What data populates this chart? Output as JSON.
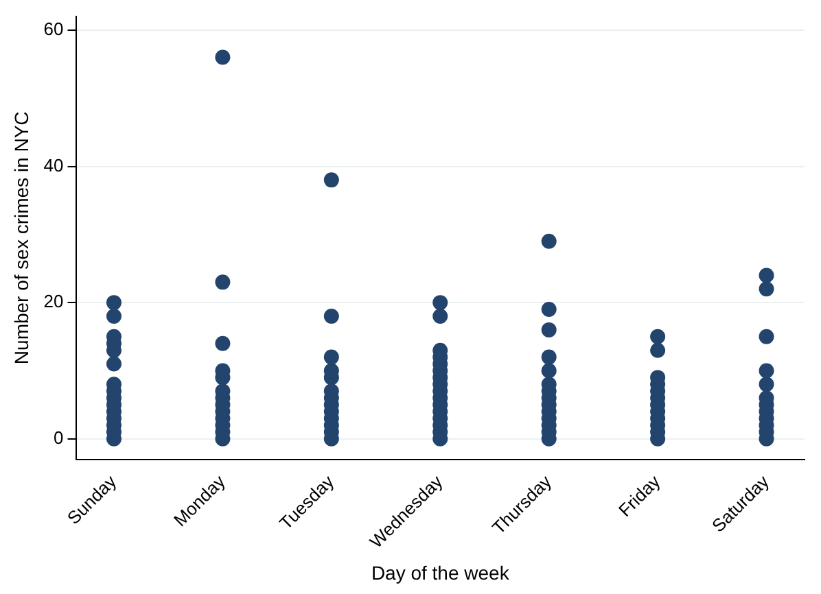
{
  "chart_data": {
    "type": "scatter",
    "xlabel": "Day of the week",
    "ylabel": "Number of sex crimes in NYC",
    "categories": [
      "Sunday",
      "Monday",
      "Tuesday",
      "Wednesday",
      "Thursday",
      "Friday",
      "Saturday"
    ],
    "ylim": [
      -3,
      62
    ],
    "yticks": [
      0,
      20,
      40,
      60
    ],
    "grid": "y",
    "legend": false,
    "marker": "circle",
    "series": [
      {
        "color": "#23446c",
        "x": [
          "Sunday",
          "Sunday",
          "Sunday",
          "Sunday",
          "Sunday",
          "Sunday",
          "Sunday",
          "Sunday",
          "Sunday",
          "Sunday",
          "Sunday",
          "Sunday",
          "Sunday",
          "Sunday",
          "Sunday",
          "Monday",
          "Monday",
          "Monday",
          "Monday",
          "Monday",
          "Monday",
          "Monday",
          "Monday",
          "Monday",
          "Monday",
          "Monday",
          "Monday",
          "Monday",
          "Tuesday",
          "Tuesday",
          "Tuesday",
          "Tuesday",
          "Tuesday",
          "Tuesday",
          "Tuesday",
          "Tuesday",
          "Tuesday",
          "Tuesday",
          "Tuesday",
          "Tuesday",
          "Tuesday",
          "Wednesday",
          "Wednesday",
          "Wednesday",
          "Wednesday",
          "Wednesday",
          "Wednesday",
          "Wednesday",
          "Wednesday",
          "Wednesday",
          "Wednesday",
          "Wednesday",
          "Wednesday",
          "Wednesday",
          "Wednesday",
          "Wednesday",
          "Wednesday",
          "Thursday",
          "Thursday",
          "Thursday",
          "Thursday",
          "Thursday",
          "Thursday",
          "Thursday",
          "Thursday",
          "Thursday",
          "Thursday",
          "Thursday",
          "Thursday",
          "Thursday",
          "Thursday",
          "Friday",
          "Friday",
          "Friday",
          "Friday",
          "Friday",
          "Friday",
          "Friday",
          "Friday",
          "Friday",
          "Friday",
          "Friday",
          "Friday",
          "Saturday",
          "Saturday",
          "Saturday",
          "Saturday",
          "Saturday",
          "Saturday",
          "Saturday",
          "Saturday",
          "Saturday",
          "Saturday",
          "Saturday",
          "Saturday"
        ],
        "values": [
          0,
          1,
          2,
          3,
          4,
          5,
          6,
          7,
          8,
          11,
          13,
          14,
          15,
          18,
          20,
          0,
          1,
          2,
          3,
          4,
          5,
          6,
          7,
          9,
          10,
          14,
          23,
          56,
          0,
          1,
          2,
          3,
          4,
          5,
          6,
          7,
          9,
          10,
          12,
          18,
          38,
          0,
          1,
          2,
          3,
          4,
          5,
          6,
          7,
          8,
          9,
          10,
          11,
          12,
          13,
          18,
          20,
          0,
          1,
          2,
          3,
          4,
          5,
          6,
          7,
          8,
          10,
          12,
          16,
          19,
          29,
          0,
          1,
          2,
          3,
          4,
          5,
          6,
          7,
          8,
          9,
          13,
          15,
          0,
          1,
          2,
          3,
          4,
          5,
          6,
          8,
          10,
          15,
          22,
          24
        ]
      }
    ]
  }
}
